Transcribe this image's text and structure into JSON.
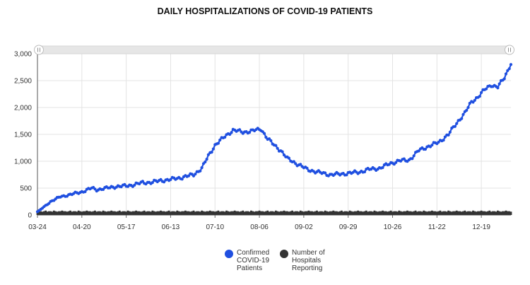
{
  "chart_data": {
    "type": "line",
    "title": "DAILY HOSPITALIZATIONS OF COVID-19 PATIENTS",
    "xlabel": "",
    "ylabel": "",
    "x_start": "03-24",
    "x_tick_labels": [
      "03-24",
      "04-20",
      "05-17",
      "06-13",
      "07-10",
      "08-06",
      "09-02",
      "09-29",
      "10-26",
      "11-22",
      "12-19"
    ],
    "x_tick_days": [
      0,
      27,
      54,
      81,
      108,
      135,
      162,
      189,
      216,
      243,
      270
    ],
    "y_ticks": [
      0,
      500,
      1000,
      1500,
      2000,
      2500,
      3000
    ],
    "y_tick_labels": [
      "0",
      "500",
      "1,000",
      "1,500",
      "2,000",
      "2,500",
      "3,000"
    ],
    "ylim": [
      0,
      3000
    ],
    "grid": true,
    "legend_position": "bottom",
    "series": [
      {
        "name": "Confirmed COVID-19 Patients",
        "color": "#1f4fe0",
        "day_knots": [
          0,
          4,
          8,
          14,
          20,
          27,
          33,
          36,
          42,
          48,
          54,
          58,
          64,
          70,
          75,
          81,
          88,
          95,
          100,
          104,
          108,
          114,
          119,
          125,
          130,
          136,
          140,
          144,
          148,
          152,
          158,
          164,
          170,
          178,
          184,
          190,
          196,
          202,
          208,
          214,
          220,
          226,
          232,
          238,
          244,
          250,
          256,
          260,
          264,
          268,
          272,
          276,
          280,
          284,
          288
        ],
        "value_knots": [
          60,
          150,
          250,
          340,
          380,
          430,
          500,
          470,
          500,
          530,
          540,
          560,
          600,
          610,
          640,
          660,
          700,
          750,
          870,
          1100,
          1300,
          1460,
          1580,
          1540,
          1560,
          1600,
          1420,
          1300,
          1200,
          1050,
          950,
          850,
          800,
          750,
          760,
          780,
          800,
          850,
          870,
          950,
          1010,
          1020,
          1200,
          1280,
          1350,
          1500,
          1750,
          1900,
          2100,
          2200,
          2330,
          2420,
          2380,
          2550,
          2820
        ]
      },
      {
        "name": "Number of Hospitals Reporting",
        "color": "#333333",
        "value": 70
      }
    ]
  }
}
